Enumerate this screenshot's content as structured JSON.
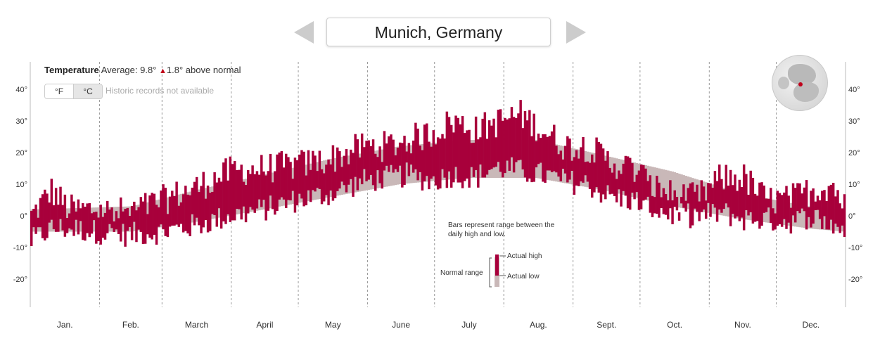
{
  "city": "Munich, Germany",
  "header": {
    "title": "Temperature",
    "average_label": "Average: 9.8°",
    "anomaly_icon": "up-triangle-icon",
    "anomaly": "1.8° above normal"
  },
  "units": {
    "fahrenheit": "°F",
    "celsius": "°C",
    "selected": "°C"
  },
  "records_note": "Historic records not available",
  "legend": {
    "explanation": "Bars represent range between the daily high and low.",
    "normal_range": "Normal range",
    "actual_high": "Actual high",
    "actual_low": "Actual low"
  },
  "colors": {
    "actual": "#a8003b",
    "normal": "#c9b8b8",
    "up_arrow": "#c0001a"
  },
  "chart_data": {
    "type": "bar",
    "ylim": [
      -30,
      48
    ],
    "y_ticks": [
      "40°",
      "30°",
      "20°",
      "10°",
      "0°",
      "-10°",
      "-20°"
    ],
    "months": [
      "Jan.",
      "Feb.",
      "March",
      "April",
      "May",
      "June",
      "July",
      "Aug.",
      "Sept.",
      "Oct.",
      "Nov.",
      "Dec."
    ],
    "normal_range": {
      "days": [
        1,
        46,
        74,
        105,
        135,
        166,
        196,
        227,
        258,
        288,
        319,
        349,
        365
      ],
      "high": [
        2,
        3,
        8,
        13,
        18,
        22,
        24,
        24,
        19,
        14,
        7,
        3,
        2
      ],
      "low": [
        -5,
        -5,
        -2,
        2,
        6,
        10,
        12,
        12,
        8,
        3,
        -1,
        -4,
        -5
      ]
    },
    "daily_high_anchors": {
      "days": [
        1,
        10,
        18,
        30,
        45,
        60,
        75,
        90,
        105,
        120,
        135,
        150,
        160,
        170,
        180,
        190,
        200,
        207,
        215,
        220,
        230,
        240,
        250,
        260,
        270,
        280,
        290,
        300,
        310,
        320,
        330,
        340,
        350,
        360,
        365
      ],
      "values": [
        0,
        8,
        2,
        2,
        1,
        5,
        9,
        14,
        15,
        16,
        18,
        22,
        22,
        24,
        26,
        30,
        27,
        29,
        31,
        32,
        27,
        22,
        22,
        17,
        15,
        9,
        6,
        6,
        12,
        12,
        5,
        5,
        8,
        10,
        3
      ]
    },
    "daily_low_anchors": {
      "days": [
        1,
        10,
        18,
        30,
        45,
        60,
        75,
        90,
        105,
        120,
        135,
        150,
        160,
        170,
        180,
        190,
        200,
        207,
        215,
        220,
        230,
        240,
        250,
        260,
        270,
        280,
        290,
        300,
        310,
        320,
        330,
        340,
        350,
        360,
        365
      ],
      "values": [
        -8,
        -4,
        -4,
        -5,
        -6,
        -5,
        -3,
        0,
        2,
        5,
        7,
        11,
        12,
        13,
        11,
        13,
        12,
        15,
        15,
        14,
        13,
        11,
        10,
        6,
        5,
        2,
        0,
        0,
        1,
        -1,
        -1,
        -2,
        0,
        -3,
        -4
      ]
    }
  }
}
